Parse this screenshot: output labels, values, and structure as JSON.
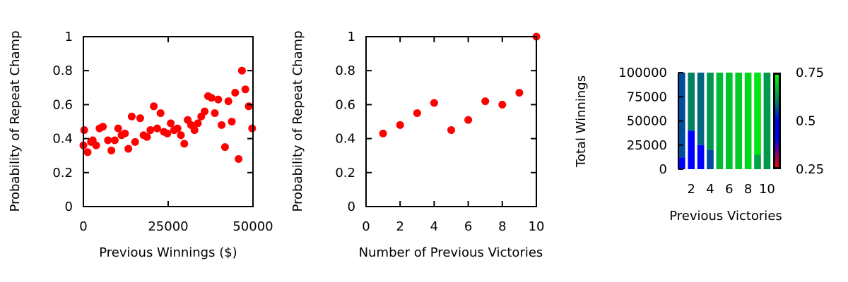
{
  "chart_data": [
    {
      "type": "scatter",
      "xlabel": "Previous Winnings ($)",
      "ylabel": "Probability of Repeat Champ",
      "xlim": [
        0,
        50000
      ],
      "ylim": [
        0,
        1
      ],
      "xticks": [
        0,
        25000,
        50000
      ],
      "xtick_labels": [
        "0",
        "25000",
        "50000"
      ],
      "yticks": [
        0,
        0.2,
        0.4,
        0.6,
        0.8,
        1
      ],
      "ytick_labels": [
        "0",
        "0.2",
        "0.4",
        "0.6",
        "0.8",
        "1"
      ],
      "point_color": "#ff0000",
      "points": [
        [
          0,
          0.36
        ],
        [
          250,
          0.45
        ],
        [
          1250,
          0.32
        ],
        [
          2250,
          0.38
        ],
        [
          2750,
          0.39
        ],
        [
          3750,
          0.36
        ],
        [
          4750,
          0.46
        ],
        [
          5750,
          0.47
        ],
        [
          7250,
          0.39
        ],
        [
          8250,
          0.33
        ],
        [
          9250,
          0.39
        ],
        [
          10250,
          0.46
        ],
        [
          11250,
          0.42
        ],
        [
          12250,
          0.43
        ],
        [
          13250,
          0.34
        ],
        [
          14250,
          0.53
        ],
        [
          15250,
          0.38
        ],
        [
          16750,
          0.52
        ],
        [
          17750,
          0.42
        ],
        [
          18750,
          0.41
        ],
        [
          19750,
          0.45
        ],
        [
          20750,
          0.59
        ],
        [
          21750,
          0.46
        ],
        [
          22750,
          0.55
        ],
        [
          23750,
          0.44
        ],
        [
          24750,
          0.43
        ],
        [
          25750,
          0.49
        ],
        [
          26750,
          0.45
        ],
        [
          27750,
          0.46
        ],
        [
          28750,
          0.42
        ],
        [
          29750,
          0.37
        ],
        [
          30750,
          0.51
        ],
        [
          31750,
          0.48
        ],
        [
          32750,
          0.45
        ],
        [
          33750,
          0.49
        ],
        [
          34750,
          0.53
        ],
        [
          35750,
          0.56
        ],
        [
          36750,
          0.65
        ],
        [
          37750,
          0.64
        ],
        [
          38750,
          0.55
        ],
        [
          39750,
          0.63
        ],
        [
          40750,
          0.48
        ],
        [
          41750,
          0.35
        ],
        [
          42750,
          0.62
        ],
        [
          43750,
          0.5
        ],
        [
          44750,
          0.67
        ],
        [
          45750,
          0.28
        ],
        [
          46750,
          0.8
        ],
        [
          47750,
          0.69
        ],
        [
          48750,
          0.59
        ],
        [
          49750,
          0.46
        ]
      ]
    },
    {
      "type": "scatter",
      "xlabel": "Number of Previous Victories",
      "ylabel": "Probability of Repeat Champ",
      "xlim": [
        0,
        10
      ],
      "ylim": [
        0,
        1
      ],
      "xticks": [
        0,
        2,
        4,
        6,
        8,
        10
      ],
      "xtick_labels": [
        "0",
        "2",
        "4",
        "6",
        "8",
        "10"
      ],
      "yticks": [
        0,
        0.2,
        0.4,
        0.6,
        0.8,
        1
      ],
      "ytick_labels": [
        "0",
        "0.2",
        "0.4",
        "0.6",
        "0.8",
        "1"
      ],
      "point_color": "#ff0000",
      "points": [
        [
          1,
          0.43
        ],
        [
          2,
          0.48
        ],
        [
          3,
          0.55
        ],
        [
          4,
          0.61
        ],
        [
          5,
          0.45
        ],
        [
          6,
          0.51
        ],
        [
          7,
          0.62
        ],
        [
          8,
          0.6
        ],
        [
          9,
          0.67
        ],
        [
          10,
          1.0
        ]
      ]
    },
    {
      "type": "heatmap",
      "xlabel": "Previous Victories",
      "ylabel": "Total Winnings",
      "xlim": [
        0.5,
        10.5
      ],
      "ylim": [
        0,
        100000
      ],
      "xticks": [
        2,
        4,
        6,
        8,
        10
      ],
      "xtick_labels": [
        "2",
        "4",
        "6",
        "8",
        "10"
      ],
      "yticks": [
        0,
        25000,
        50000,
        75000,
        100000
      ],
      "ytick_labels": [
        "0",
        "25000",
        "50000",
        "75000",
        "100000"
      ],
      "colorbar": {
        "range": [
          0.25,
          0.75
        ],
        "ticks": [
          0.25,
          0.5,
          0.75
        ],
        "tick_labels": [
          "0.25",
          "0.5",
          "0.75"
        ],
        "colormap": [
          [
            0.25,
            "#ff0000"
          ],
          [
            0.4,
            "#0000ff"
          ],
          [
            0.5,
            "#0000ff"
          ],
          [
            0.6,
            "#008060"
          ],
          [
            0.75,
            "#00ff00"
          ]
        ]
      },
      "columns": [
        {
          "x": 1,
          "bands": [
            [
              0,
              12000,
              0.43
            ],
            [
              12000,
              100000,
              0.56
            ]
          ]
        },
        {
          "x": 2,
          "bands": [
            [
              0,
              40000,
              0.47
            ],
            [
              40000,
              100000,
              0.6
            ]
          ]
        },
        {
          "x": 3,
          "bands": [
            [
              0,
              25000,
              0.5
            ],
            [
              25000,
              100000,
              0.58
            ]
          ]
        },
        {
          "x": 4,
          "bands": [
            [
              0,
              20000,
              0.56
            ],
            [
              20000,
              100000,
              0.63
            ]
          ]
        },
        {
          "x": 5,
          "bands": [
            [
              0,
              100000,
              0.67
            ]
          ]
        },
        {
          "x": 6,
          "bands": [
            [
              0,
              100000,
              0.68
            ]
          ]
        },
        {
          "x": 7,
          "bands": [
            [
              0,
              100000,
              0.69
            ]
          ]
        },
        {
          "x": 8,
          "bands": [
            [
              0,
              100000,
              0.7
            ]
          ]
        },
        {
          "x": 9,
          "bands": [
            [
              0,
              15000,
              0.64
            ],
            [
              15000,
              100000,
              0.72
            ]
          ]
        },
        {
          "x": 10,
          "bands": [
            [
              0,
              100000,
              0.63
            ]
          ]
        }
      ]
    }
  ]
}
